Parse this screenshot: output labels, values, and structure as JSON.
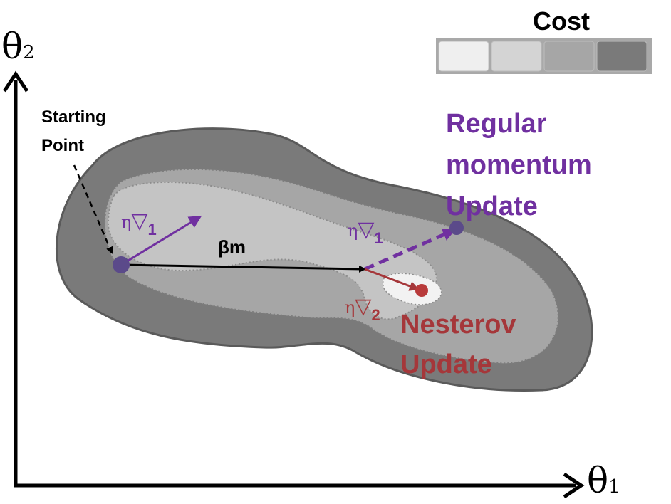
{
  "axes": {
    "x_symbol": "θ",
    "x_sub": "1",
    "y_symbol": "θ",
    "y_sub": "2"
  },
  "legend": {
    "title": "Cost",
    "swatch_colors": [
      "#efefef",
      "#d4d4d4",
      "#a6a6a6",
      "#7a7a7a"
    ]
  },
  "labels": {
    "starting_point_line1": "Starting",
    "starting_point_line2": "Point",
    "beta_m": "βm",
    "eta_grad_1_start_eta": "η",
    "eta_grad_1_start_nabla": "▽",
    "eta_grad_1_start_sub": "1",
    "eta_grad_1_mid_eta": "η",
    "eta_grad_1_mid_nabla": "▽",
    "eta_grad_1_mid_sub": "1",
    "eta_grad_2_eta": "η",
    "eta_grad_2_nabla": "▽",
    "eta_grad_2_sub": "2",
    "regular_line1": "Regular",
    "regular_line2": "momentum",
    "regular_line3": "Update",
    "nesterov_line1": "Nesterov",
    "nesterov_line2": "Update"
  },
  "colors": {
    "purple": "#7030a0",
    "purple_dot": "#5b4a8a",
    "dark_red": "#a5373a",
    "black": "#000000",
    "outer_region": "#7a7a7a",
    "mid_region": "#a6a6a6",
    "inner_region": "#c4c4c4",
    "core_region": "#f2f2f2"
  }
}
